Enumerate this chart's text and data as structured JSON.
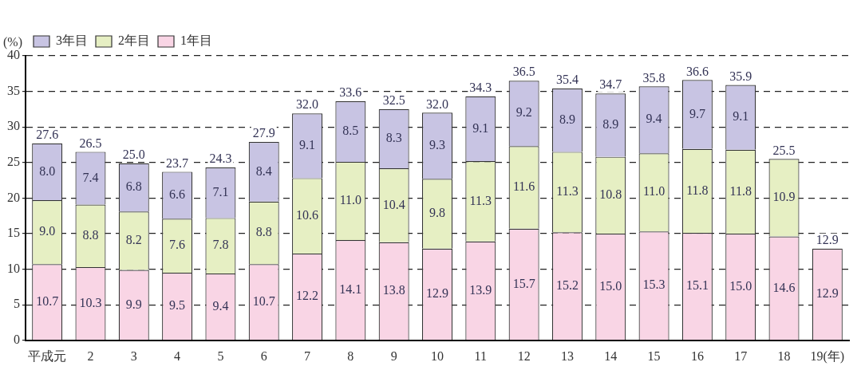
{
  "chart_data": {
    "type": "bar",
    "stacked": true,
    "ylabel": "(%)",
    "categories": [
      "平成元",
      "2",
      "3",
      "4",
      "5",
      "6",
      "7",
      "8",
      "9",
      "10",
      "11",
      "12",
      "13",
      "14",
      "15",
      "16",
      "17",
      "18",
      "19(年)"
    ],
    "series": [
      {
        "name": "1年目",
        "color": "#f9d5e5",
        "values": [
          10.7,
          10.3,
          9.9,
          9.5,
          9.4,
          10.7,
          12.2,
          14.1,
          13.8,
          12.9,
          13.9,
          15.7,
          15.2,
          15.0,
          15.3,
          15.1,
          15.0,
          14.6,
          12.9
        ],
        "value_labels": [
          "10.7",
          "10.3",
          "9.9",
          "9.5",
          "9.4",
          "10.7",
          "12.2",
          "14.1",
          "13.8",
          "12.9",
          "13.9",
          "15.7",
          "15.2",
          "15.0",
          "15.3",
          "15.1",
          "15.0",
          "14.6",
          "12.9"
        ]
      },
      {
        "name": "2年目",
        "color": "#e6efc3",
        "values": [
          9.0,
          8.8,
          8.2,
          7.6,
          7.8,
          8.8,
          10.6,
          11.0,
          10.4,
          9.8,
          11.3,
          11.6,
          11.3,
          10.8,
          11.0,
          11.8,
          11.8,
          10.9,
          null
        ],
        "value_labels": [
          "9.0",
          "8.8",
          "8.2",
          "7.6",
          "7.8",
          "8.8",
          "10.6",
          "11.0",
          "10.4",
          "9.8",
          "11.3",
          "11.6",
          "11.3",
          "10.8",
          "11.0",
          "11.8",
          "11.8",
          "10.9",
          null
        ]
      },
      {
        "name": "3年目",
        "color": "#c8c4e3",
        "values": [
          8.0,
          7.4,
          6.8,
          6.6,
          7.1,
          8.4,
          9.1,
          8.5,
          8.3,
          9.3,
          9.1,
          9.2,
          8.9,
          8.9,
          9.4,
          9.7,
          9.1,
          null,
          null
        ],
        "value_labels": [
          "8.0",
          "7.4",
          "6.8",
          "6.6",
          "7.1",
          "8.4",
          "9.1",
          "8.5",
          "8.3",
          "9.3",
          "9.1",
          "9.2",
          "8.9",
          "8.9",
          "9.4",
          "9.7",
          "9.1",
          null,
          null
        ]
      }
    ],
    "totals": [
      "27.6",
      "26.5",
      "25.0",
      "23.7",
      "24.3",
      "27.9",
      "32.0",
      "33.6",
      "32.5",
      "32.0",
      "34.3",
      "36.5",
      "35.4",
      "34.7",
      "35.8",
      "36.6",
      "35.9",
      "25.5",
      "12.9"
    ],
    "ylim": [
      0,
      40
    ],
    "yticks": [
      0,
      5,
      10,
      15,
      20,
      25,
      30,
      35,
      40
    ],
    "grid": "y",
    "legend": "top left"
  }
}
